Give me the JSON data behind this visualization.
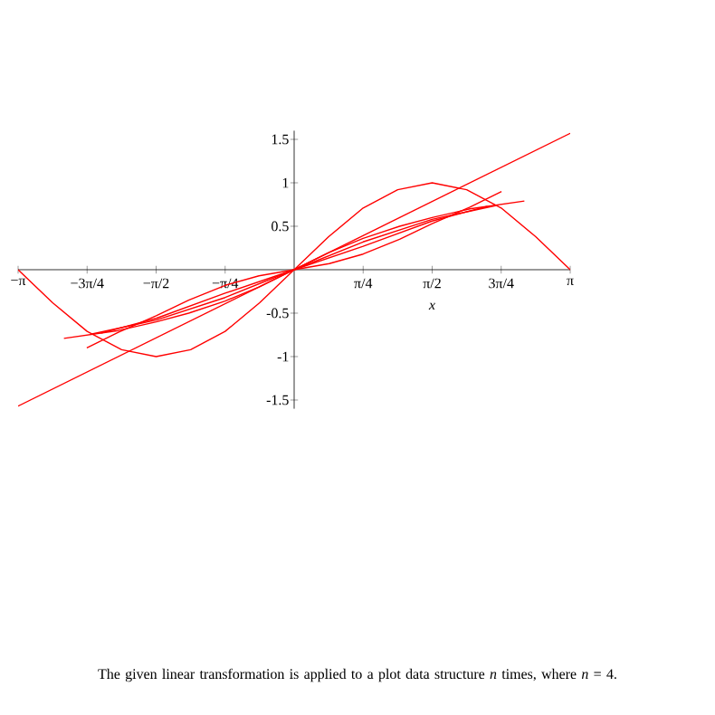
{
  "chart_data": {
    "type": "line",
    "xlabel": "x",
    "annotations": [
      "The given linear transformation is applied to a plot data structure *n* times, where *n* = 4."
    ],
    "xlim": [
      -3.1416,
      3.1416
    ],
    "ylim": [
      -1.6,
      1.6
    ],
    "xticks": [
      {
        "value": -3.1416,
        "label": "−π"
      },
      {
        "value": -2.3562,
        "label": "−3π/4"
      },
      {
        "value": -1.5708,
        "label": "−π/2"
      },
      {
        "value": -0.7854,
        "label": "−π/4"
      },
      {
        "value": 0.7854,
        "label": "π/4"
      },
      {
        "value": 1.5708,
        "label": "π/2"
      },
      {
        "value": 2.3562,
        "label": "3π/4"
      },
      {
        "value": 3.1416,
        "label": "π"
      }
    ],
    "yticks": [
      -1.5,
      -1,
      -0.5,
      0.5,
      1,
      1.5
    ],
    "series": [
      {
        "color": "#ff0000",
        "x": [
          -3.1416,
          -2.7489,
          -2.3562,
          -1.9635,
          -1.5708,
          -1.1781,
          -0.7854,
          -0.3927,
          0,
          0.3927,
          0.7854,
          1.1781,
          1.5708,
          1.9635,
          2.3562,
          2.7489,
          3.1416
        ],
        "values": [
          0,
          -0.38,
          -0.71,
          -0.92,
          -1,
          -0.92,
          -0.71,
          -0.38,
          0,
          0.38,
          0.71,
          0.92,
          1,
          0.92,
          0.71,
          0.38,
          0
        ]
      },
      {
        "color": "#ff0000",
        "x": [
          -3.1416,
          3.1416
        ],
        "values": [
          -1.57,
          1.57
        ]
      },
      {
        "color": "#ff0000",
        "x": [
          -2.36,
          -2,
          -1.57,
          -1.2,
          -0.785,
          -0.4,
          0,
          0.4,
          0.785,
          1.2,
          1.57,
          2,
          2.36
        ],
        "values": [
          -0.9,
          -0.72,
          -0.53,
          -0.35,
          -0.18,
          -0.07,
          0,
          0.07,
          0.18,
          0.35,
          0.53,
          0.72,
          0.9
        ]
      },
      {
        "color": "#ff0000",
        "x": [
          -2.62,
          -2,
          -1.57,
          -1.2,
          -0.785,
          -0.4,
          0,
          0.4,
          0.785,
          1.2,
          1.57,
          2,
          2.62
        ],
        "values": [
          -0.79,
          -0.7,
          -0.6,
          -0.5,
          -0.36,
          -0.2,
          0,
          0.2,
          0.36,
          0.5,
          0.6,
          0.7,
          0.79
        ]
      },
      {
        "color": "#ff0000",
        "x": [
          -2.3,
          -1.57,
          -0.785,
          0,
          0.785,
          1.57,
          2.3
        ],
        "values": [
          -0.74,
          -0.58,
          -0.32,
          0,
          0.32,
          0.58,
          0.74
        ]
      },
      {
        "color": "#ff0000",
        "x": [
          -2.2,
          -1.57,
          -0.785,
          0,
          0.785,
          1.57,
          2.2
        ],
        "values": [
          -0.73,
          -0.56,
          -0.27,
          0,
          0.27,
          0.56,
          0.73
        ]
      }
    ]
  }
}
